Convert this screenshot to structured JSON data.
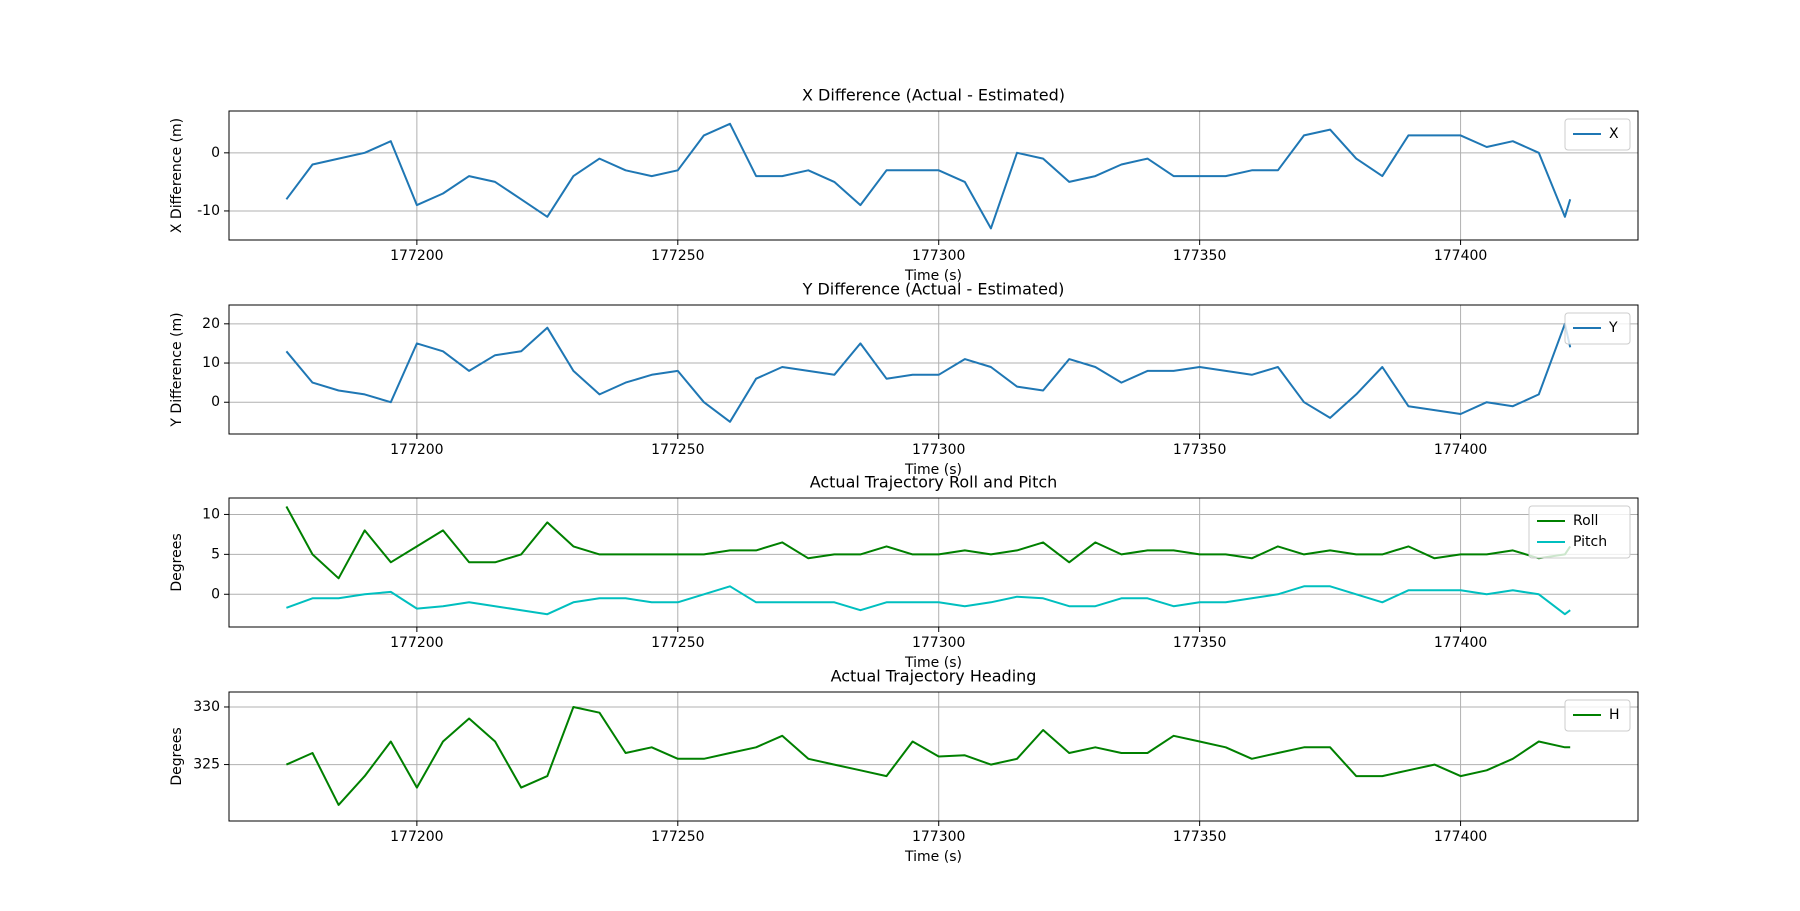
{
  "chart_data": [
    {
      "type": "line",
      "title": "X Difference (Actual - Estimated)",
      "x_label": "Time (s)",
      "y_label": "X Difference (m)",
      "x": [
        177175,
        177180,
        177185,
        177190,
        177195,
        177200,
        177205,
        177210,
        177215,
        177220,
        177225,
        177230,
        177235,
        177240,
        177245,
        177250,
        177255,
        177260,
        177265,
        177270,
        177275,
        177280,
        177285,
        177290,
        177295,
        177300,
        177305,
        177310,
        177315,
        177320,
        177325,
        177330,
        177335,
        177340,
        177345,
        177350,
        177355,
        177360,
        177365,
        177370,
        177375,
        177380,
        177385,
        177390,
        177395,
        177400,
        177405,
        177410,
        177415,
        177420,
        177421
      ],
      "series": [
        {
          "name": "X",
          "color": "#1f77b4",
          "values": [
            -8,
            -2,
            -1,
            0,
            2,
            -9,
            -7,
            -4,
            -5,
            -8,
            -11,
            -4,
            -1,
            -3,
            -4,
            -3,
            3,
            5,
            -4,
            -4,
            -3,
            -5,
            -9,
            -3,
            -3,
            -3,
            -5,
            -13,
            0,
            -1,
            -5,
            -4,
            -2,
            -1,
            -4,
            -4,
            -4,
            -3,
            -3,
            3,
            4,
            -1,
            -4,
            3,
            3,
            3,
            1,
            2,
            0,
            -11,
            -8
          ]
        }
      ],
      "xlim": [
        177164,
        177434
      ],
      "ylim": [
        -15,
        7.2
      ],
      "xticks": [
        177200,
        177250,
        177300,
        177350,
        177400
      ],
      "yticks": [
        -10,
        0
      ],
      "grid": true,
      "legend": "upper right"
    },
    {
      "type": "line",
      "title": "Y Difference (Actual - Estimated)",
      "x_label": "Time (s)",
      "y_label": "Y Difference (m)",
      "x": [
        177175,
        177180,
        177185,
        177190,
        177195,
        177200,
        177205,
        177210,
        177215,
        177220,
        177225,
        177230,
        177235,
        177240,
        177245,
        177250,
        177255,
        177260,
        177265,
        177270,
        177275,
        177280,
        177285,
        177290,
        177295,
        177300,
        177305,
        177310,
        177315,
        177320,
        177325,
        177330,
        177335,
        177340,
        177345,
        177350,
        177355,
        177360,
        177365,
        177370,
        177375,
        177380,
        177385,
        177390,
        177395,
        177400,
        177405,
        177410,
        177415,
        177420,
        177421
      ],
      "series": [
        {
          "name": "Y",
          "color": "#1f77b4",
          "values": [
            13,
            5,
            3,
            2,
            0,
            15,
            13,
            8,
            12,
            13,
            19,
            8,
            2,
            5,
            7,
            8,
            0,
            -5,
            6,
            9,
            8,
            7,
            15,
            6,
            7,
            7,
            11,
            9,
            4,
            3,
            11,
            9,
            5,
            8,
            8,
            9,
            8,
            7,
            9,
            0,
            -4,
            2,
            9,
            -1,
            -2,
            -3,
            0,
            -1,
            2,
            20,
            14
          ]
        }
      ],
      "xlim": [
        177164,
        177434
      ],
      "ylim": [
        -8.1,
        24.8
      ],
      "xticks": [
        177200,
        177250,
        177300,
        177350,
        177400
      ],
      "yticks": [
        0,
        10,
        20
      ],
      "grid": true,
      "legend": "upper right"
    },
    {
      "type": "line",
      "title": "Actual Trajectory Roll and Pitch",
      "x_label": "Time (s)",
      "y_label": "Degrees",
      "x": [
        177175,
        177180,
        177185,
        177190,
        177195,
        177200,
        177205,
        177210,
        177215,
        177220,
        177225,
        177230,
        177235,
        177240,
        177245,
        177250,
        177255,
        177260,
        177265,
        177270,
        177275,
        177280,
        177285,
        177290,
        177295,
        177300,
        177305,
        177310,
        177315,
        177320,
        177325,
        177330,
        177335,
        177340,
        177345,
        177350,
        177355,
        177360,
        177365,
        177370,
        177375,
        177380,
        177385,
        177390,
        177395,
        177400,
        177405,
        177410,
        177415,
        177420,
        177421
      ],
      "series": [
        {
          "name": "Roll",
          "color": "#008000",
          "values": [
            11,
            5,
            2,
            8,
            4,
            6,
            8,
            4,
            4,
            5,
            9,
            6,
            5,
            5,
            5,
            5,
            5,
            5.5,
            5.5,
            6.5,
            4.5,
            5,
            5,
            6,
            5,
            5,
            5.5,
            5,
            5.5,
            6.5,
            4,
            6.5,
            5,
            5.5,
            5.5,
            5,
            5,
            4.5,
            6,
            5,
            5.5,
            5,
            5,
            6,
            4.5,
            5,
            5,
            5.5,
            4.5,
            5,
            6
          ]
        },
        {
          "name": "Pitch",
          "color": "#00bfbf",
          "values": [
            -1.7,
            -0.5,
            -0.5,
            0,
            0.3,
            -1.8,
            -1.5,
            -1,
            -1.5,
            -2,
            -2.5,
            -1,
            -0.5,
            -0.5,
            -1,
            -1,
            0,
            1,
            -1,
            -1,
            -1,
            -1,
            -2,
            -1,
            -1,
            -1,
            -1.5,
            -1,
            -0.3,
            -0.5,
            -1.5,
            -1.5,
            -0.5,
            -0.5,
            -1.5,
            -1,
            -1,
            -0.5,
            0,
            1,
            1,
            0,
            -1,
            0.5,
            0.5,
            0.5,
            0,
            0.5,
            0,
            -2.5,
            -2
          ]
        }
      ],
      "xlim": [
        177164,
        177434
      ],
      "ylim": [
        -4.1,
        12.06
      ],
      "xticks": [
        177200,
        177250,
        177300,
        177350,
        177400
      ],
      "yticks": [
        0,
        5,
        10
      ],
      "grid": true,
      "legend": "upper right"
    },
    {
      "type": "line",
      "title": "Actual Trajectory Heading",
      "x_label": "Time (s)",
      "y_label": "Degrees",
      "x": [
        177175,
        177180,
        177185,
        177190,
        177195,
        177200,
        177205,
        177210,
        177215,
        177220,
        177225,
        177230,
        177235,
        177240,
        177245,
        177250,
        177255,
        177260,
        177265,
        177270,
        177275,
        177280,
        177285,
        177290,
        177295,
        177300,
        177305,
        177310,
        177315,
        177320,
        177325,
        177330,
        177335,
        177340,
        177345,
        177350,
        177355,
        177360,
        177365,
        177370,
        177375,
        177380,
        177385,
        177390,
        177395,
        177400,
        177405,
        177410,
        177415,
        177420,
        177421
      ],
      "series": [
        {
          "name": "H",
          "color": "#008000",
          "values": [
            325,
            326,
            321.5,
            324,
            327,
            323,
            327,
            329,
            327,
            323,
            324,
            330,
            329.5,
            326,
            326.5,
            325.5,
            325.5,
            326,
            326.5,
            327.5,
            325.5,
            325,
            324.5,
            324,
            327,
            325.7,
            325.8,
            325,
            325.5,
            328,
            326,
            326.5,
            326,
            326,
            327.5,
            327,
            326.5,
            325.5,
            326,
            326.5,
            326.5,
            324,
            324,
            324.5,
            325,
            324,
            324.5,
            325.5,
            327,
            326.5,
            326.5
          ]
        }
      ],
      "xlim": [
        177164,
        177434
      ],
      "ylim": [
        320.1,
        331.3
      ],
      "xticks": [
        177200,
        177250,
        177300,
        177350,
        177400
      ],
      "yticks": [
        325,
        330
      ],
      "grid": true,
      "legend": "upper right"
    }
  ]
}
